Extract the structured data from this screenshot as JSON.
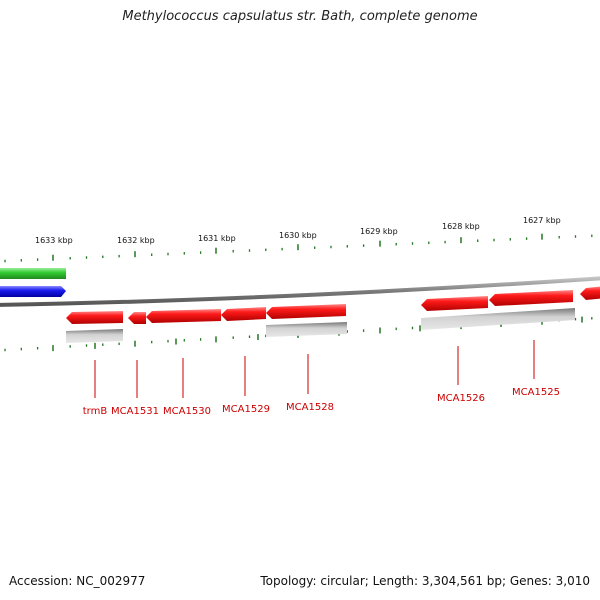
{
  "title": "Methylococcus capsulatus str. Bath, complete genome",
  "footer": {
    "accession": "Accession: NC_002977",
    "stats": "Topology: circular; Length: 3,304,561 bp; Genes: 3,010"
  },
  "colors": {
    "cds": "#ee1111",
    "gene": "#b8b8b8",
    "forward_feature": "#33cc33",
    "reverse_feature": "#1a1aee",
    "backbone": "#8a8a8a",
    "ticks": "#227722",
    "label": "#cc0000"
  },
  "scale": {
    "unit": "kbp",
    "labels": [
      "1633 kbp",
      "1632 kbp",
      "1631 kbp",
      "1630 kbp",
      "1629 kbp",
      "1628 kbp",
      "1627 kbp"
    ]
  },
  "genes": [
    {
      "label": "trmB"
    },
    {
      "label": "MCA1531"
    },
    {
      "label": "MCA1530"
    },
    {
      "label": "MCA1529"
    },
    {
      "label": "MCA1528"
    },
    {
      "label": "MCA1526"
    },
    {
      "label": "MCA1525"
    }
  ]
}
